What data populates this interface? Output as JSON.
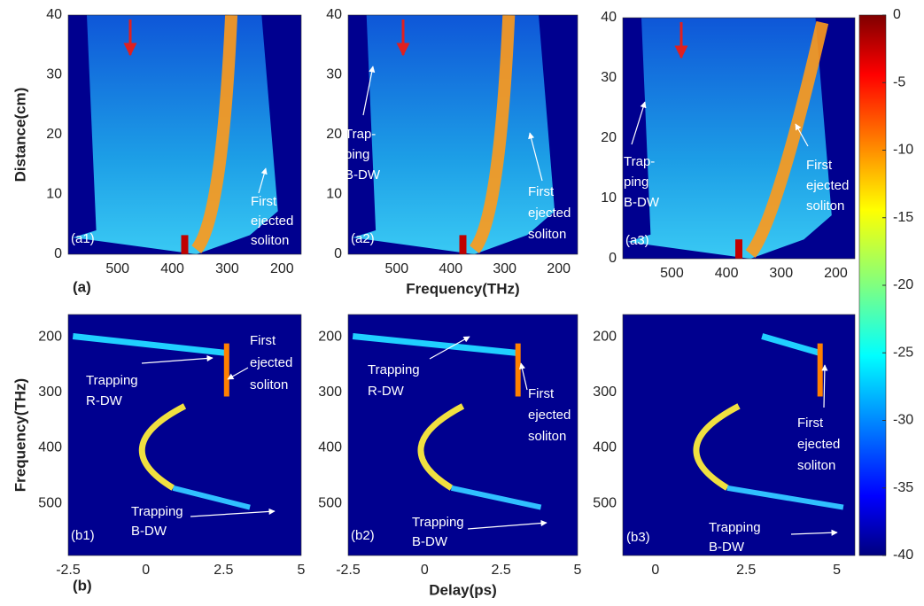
{
  "chart_data": [
    {
      "type": "heatmap",
      "panel_label": "(a1)",
      "ylabel": "Distance(cm)",
      "xlim": [
        590,
        165
      ],
      "ylim": [
        0,
        40
      ],
      "xticks": [
        500,
        400,
        300,
        200
      ],
      "yticks": [
        0,
        10,
        20,
        30,
        40
      ],
      "annotations": [
        [
          "First",
          "ejected",
          "soliton"
        ]
      ]
    },
    {
      "type": "heatmap",
      "panel_label": "(a2)",
      "xlabel": "Frequency(THz)",
      "xlim": [
        590,
        165
      ],
      "ylim": [
        0,
        40
      ],
      "xticks": [
        500,
        400,
        300,
        200
      ],
      "yticks": [
        0,
        10,
        20,
        30,
        40
      ],
      "annotations": [
        [
          "Trap-",
          "ping",
          "B-DW"
        ],
        [
          "First",
          "ejected",
          "soliton"
        ]
      ]
    },
    {
      "type": "heatmap",
      "panel_label": "(a3)",
      "xlim": [
        590,
        165
      ],
      "ylim": [
        0,
        40
      ],
      "xticks": [
        500,
        400,
        300,
        200
      ],
      "yticks": [
        0,
        10,
        20,
        30,
        40
      ],
      "annotations": [
        [
          "Trap-",
          "ping",
          "B-DW"
        ],
        [
          "First",
          "ejected",
          "soliton"
        ]
      ]
    },
    {
      "type": "heatmap",
      "panel_label": "(b1)",
      "ylabel": "Frequency(THz)",
      "xlim": [
        -2.5,
        5
      ],
      "ylim": [
        594,
        160
      ],
      "xticks": [
        -2.5,
        0,
        2.5,
        5
      ],
      "yticks": [
        200,
        300,
        400,
        500
      ],
      "annotations": [
        [
          "First",
          "ejected",
          "soliton"
        ],
        [
          "Trapping",
          "R-DW"
        ],
        [
          "Trapping",
          "B-DW"
        ]
      ]
    },
    {
      "type": "heatmap",
      "panel_label": "(b2)",
      "xlabel": "Delay(ps)",
      "xlim": [
        -2.5,
        5
      ],
      "ylim": [
        594,
        160
      ],
      "xticks": [
        -2.5,
        0,
        2.5,
        5
      ],
      "yticks": [
        200,
        300,
        400,
        500
      ],
      "annotations": [
        [
          "Trapping",
          "R-DW"
        ],
        [
          "First",
          "ejected",
          "soliton"
        ],
        [
          "Trapping",
          "B-DW"
        ]
      ]
    },
    {
      "type": "heatmap",
      "panel_label": "(b3)",
      "xlim": [
        -0.9,
        5.5
      ],
      "ylim": [
        594,
        160
      ],
      "xticks": [
        0,
        2.5,
        5
      ],
      "yticks": [
        200,
        300,
        400,
        500
      ],
      "annotations": [
        [
          "First",
          "ejected",
          "soliton"
        ],
        [
          "Trapping",
          "B-DW"
        ]
      ]
    },
    {
      "type": "colorbar",
      "ylim": [
        -40,
        0
      ],
      "yticks": [
        0,
        -5,
        -10,
        -15,
        -20,
        -25,
        -30,
        -35,
        -40
      ]
    }
  ],
  "figure_labels": [
    "(a)",
    "(b)"
  ]
}
